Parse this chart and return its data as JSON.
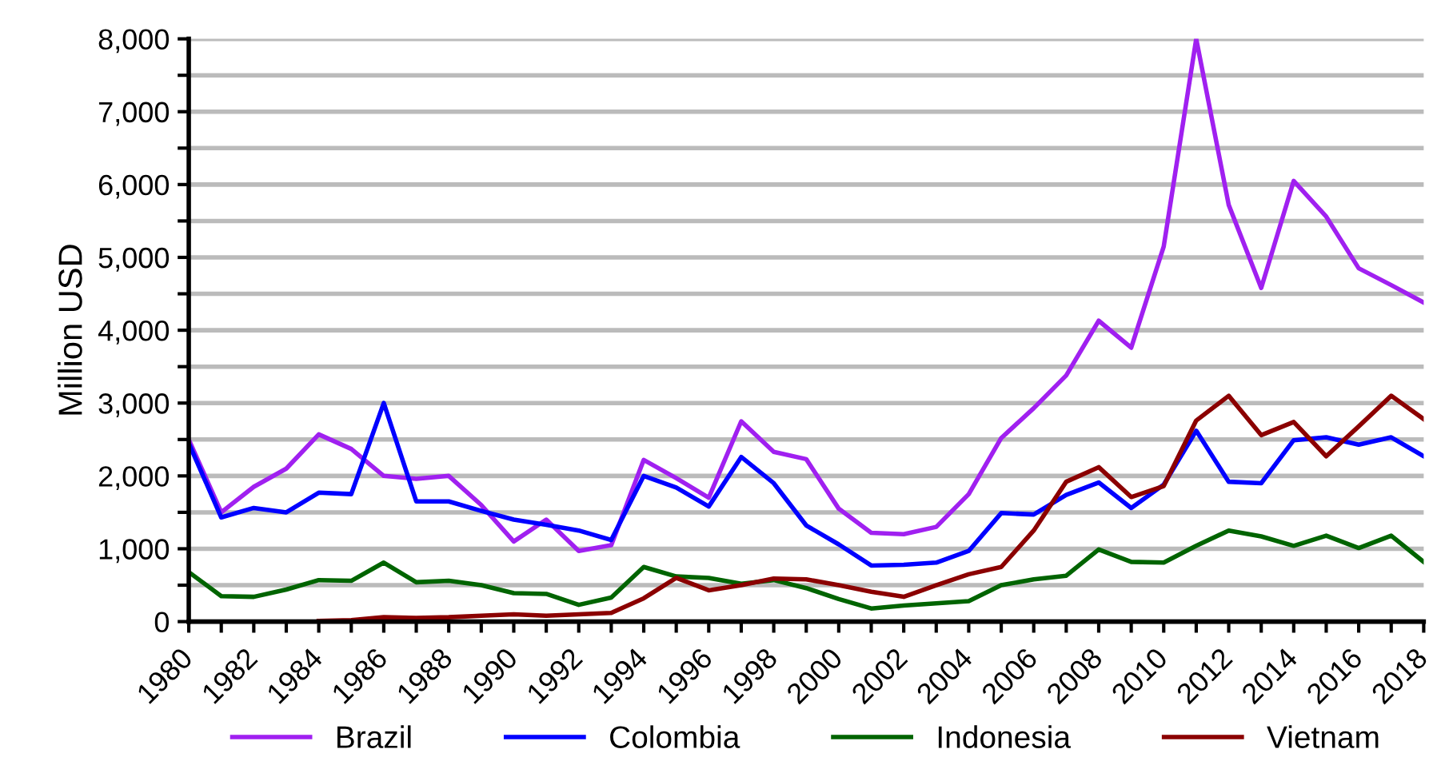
{
  "chart_data": {
    "type": "line",
    "ylabel": "Million USD",
    "x": [
      1980,
      1981,
      1982,
      1983,
      1984,
      1985,
      1986,
      1987,
      1988,
      1989,
      1990,
      1991,
      1992,
      1993,
      1994,
      1995,
      1996,
      1997,
      1998,
      1999,
      2000,
      2001,
      2002,
      2003,
      2004,
      2005,
      2006,
      2007,
      2008,
      2009,
      2010,
      2011,
      2012,
      2013,
      2014,
      2015,
      2016,
      2017,
      2018
    ],
    "series": [
      {
        "name": "Brazil",
        "color": "#a020f0",
        "values": [
          2500,
          1500,
          1850,
          2100,
          2570,
          2370,
          2000,
          1960,
          2000,
          1600,
          1100,
          1400,
          970,
          1050,
          2220,
          1970,
          1700,
          2750,
          2330,
          2230,
          1550,
          1220,
          1200,
          1300,
          1750,
          2520,
          2930,
          3380,
          4130,
          3760,
          5150,
          8000,
          5720,
          4580,
          6050,
          5560,
          4850,
          4620,
          4380
        ]
      },
      {
        "name": "Colombia",
        "color": "#0000ff",
        "values": [
          2450,
          1430,
          1560,
          1500,
          1770,
          1750,
          3000,
          1650,
          1650,
          1520,
          1400,
          1330,
          1250,
          1120,
          2000,
          1840,
          1580,
          2260,
          1900,
          1320,
          1060,
          770,
          780,
          810,
          970,
          1490,
          1470,
          1740,
          1910,
          1560,
          1880,
          2620,
          1920,
          1900,
          2490,
          2530,
          2430,
          2530,
          2270
        ]
      },
      {
        "name": "Indonesia",
        "color": "#006400",
        "values": [
          680,
          350,
          340,
          440,
          570,
          560,
          810,
          540,
          560,
          500,
          390,
          380,
          230,
          330,
          750,
          620,
          600,
          520,
          570,
          460,
          310,
          180,
          220,
          250,
          280,
          500,
          580,
          630,
          990,
          820,
          810,
          1040,
          1250,
          1170,
          1040,
          1180,
          1010,
          1180,
          820
        ]
      },
      {
        "name": "Vietnam",
        "color": "#8b0000",
        "values": [
          null,
          null,
          null,
          null,
          10,
          20,
          60,
          50,
          60,
          80,
          100,
          80,
          100,
          120,
          320,
          600,
          430,
          500,
          590,
          580,
          500,
          410,
          340,
          500,
          650,
          750,
          1250,
          1920,
          2120,
          1710,
          1860,
          2760,
          3100,
          2560,
          2740,
          2270,
          2680,
          3100,
          2780
        ]
      }
    ],
    "xlim": [
      1980,
      2018
    ],
    "xticks": [
      1980,
      {
        "value": 1981,
        "label": null
      },
      1982,
      {
        "value": 1983,
        "label": null
      },
      1984,
      {
        "value": 1985,
        "label": null
      },
      1986,
      {
        "value": 1987,
        "label": null
      },
      1988,
      {
        "value": 1989,
        "label": null
      },
      1990,
      {
        "value": 1991,
        "label": null
      },
      1992,
      {
        "value": 1993,
        "label": null
      },
      1994,
      {
        "value": 1995,
        "label": null
      },
      1996,
      {
        "value": 1997,
        "label": null
      },
      1998,
      {
        "value": 1999,
        "label": null
      },
      2000,
      {
        "value": 2001,
        "label": null
      },
      2002,
      {
        "value": 2003,
        "label": null
      },
      2004,
      {
        "value": 2005,
        "label": null
      },
      2006,
      {
        "value": 2007,
        "label": null
      },
      2008,
      {
        "value": 2009,
        "label": null
      },
      2010,
      {
        "value": 2011,
        "label": null
      },
      2012,
      {
        "value": 2013,
        "label": null
      },
      2014,
      {
        "value": 2015,
        "label": null
      },
      2016,
      {
        "value": 2017,
        "label": null
      },
      2018
    ],
    "ylim": [
      0,
      8000
    ],
    "yticks": [
      {
        "value": 0,
        "label": "0"
      },
      {
        "value": 500,
        "label": null
      },
      {
        "value": 1000,
        "label": "1,000"
      },
      {
        "value": 1500,
        "label": null
      },
      {
        "value": 2000,
        "label": "2,000"
      },
      {
        "value": 2500,
        "label": null
      },
      {
        "value": 3000,
        "label": "3,000"
      },
      {
        "value": 3500,
        "label": null
      },
      {
        "value": 4000,
        "label": "4,000"
      },
      {
        "value": 4500,
        "label": null
      },
      {
        "value": 5000,
        "label": "5,000"
      },
      {
        "value": 5500,
        "label": null
      },
      {
        "value": 6000,
        "label": "6,000"
      },
      {
        "value": 6500,
        "label": null
      },
      {
        "value": 7000,
        "label": "7,000"
      },
      {
        "value": 7500,
        "label": null
      },
      {
        "value": 8000,
        "label": "8,000"
      }
    ],
    "grid": "y",
    "legend": "bottom",
    "marker": "none",
    "line_style": "solid"
  }
}
